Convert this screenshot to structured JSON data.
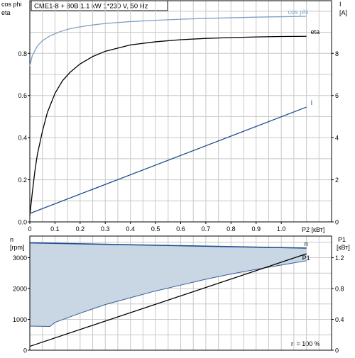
{
  "title_box": "CME1-8 + 80B   1.1 kW   1*230 V, 50 Hz",
  "colors": {
    "grid": "#c8c8c8",
    "axis": "#000000",
    "cosphi": "#7fa0c4",
    "eta": "#000000",
    "current": "#1f4e8c",
    "speed": "#1f4e8c",
    "p1": "#000000",
    "fill": "#c9d6e4",
    "fill_edge": "#2f5e9a"
  },
  "chart_data": [
    {
      "type": "line",
      "panel": "top",
      "xlabel": "P2 [кВт]",
      "xlim": [
        0,
        1.2
      ],
      "xticks": [
        0,
        0.1,
        0.2,
        0.3,
        0.4,
        0.5,
        0.6,
        0.7,
        0.8,
        0.9,
        1.0
      ],
      "xtick_labels": [
        "0",
        "0.1",
        "0.2",
        "0.3",
        "0.4",
        "0.5",
        "0.6",
        "0.7",
        "0.8",
        "0.9",
        "1.0"
      ],
      "y_left": {
        "label_line1": "cos phi",
        "label_line2": "eta",
        "lim": [
          0,
          1.05
        ],
        "ticks": [
          0,
          0.2,
          0.4,
          0.6,
          0.8
        ],
        "tick_labels": [
          "0.0",
          "0.2",
          "0.4",
          "0.6",
          "0.8"
        ]
      },
      "y_right": {
        "label_line1": "I",
        "label_line2": "[A]",
        "lim": [
          0,
          10.5
        ],
        "ticks": [
          0,
          2,
          4,
          6,
          8
        ],
        "tick_labels": [
          "0",
          "2",
          "4",
          "6",
          "8"
        ]
      },
      "grid": true,
      "series": [
        {
          "name": "cos phi",
          "axis": "left",
          "color_key": "cosphi",
          "x": [
            0,
            0.01,
            0.03,
            0.05,
            0.08,
            0.12,
            0.16,
            0.2,
            0.25,
            0.3,
            0.4,
            0.5,
            0.6,
            0.7,
            0.8,
            0.9,
            1.0,
            1.1
          ],
          "y": [
            0.74,
            0.79,
            0.835,
            0.86,
            0.883,
            0.903,
            0.917,
            0.926,
            0.935,
            0.942,
            0.951,
            0.957,
            0.962,
            0.966,
            0.969,
            0.972,
            0.974,
            0.976
          ]
        },
        {
          "name": "eta",
          "axis": "left",
          "color_key": "eta",
          "x": [
            0,
            0.01,
            0.02,
            0.03,
            0.05,
            0.07,
            0.1,
            0.13,
            0.16,
            0.2,
            0.25,
            0.3,
            0.4,
            0.5,
            0.6,
            0.7,
            0.8,
            0.9,
            1.0,
            1.1
          ],
          "y": [
            0.03,
            0.14,
            0.24,
            0.32,
            0.43,
            0.52,
            0.61,
            0.67,
            0.71,
            0.75,
            0.785,
            0.81,
            0.84,
            0.855,
            0.865,
            0.871,
            0.875,
            0.878,
            0.88,
            0.881
          ]
        },
        {
          "name": "I",
          "axis": "right",
          "color_key": "current",
          "x": [
            0,
            1.1
          ],
          "y": [
            0.4,
            5.45
          ]
        }
      ]
    },
    {
      "type": "line",
      "panel": "bottom",
      "xlim": [
        0,
        1.2
      ],
      "y_left": {
        "label_line1": "n",
        "label_line2": "[rpm]",
        "lim": [
          0,
          3700
        ],
        "ticks": [
          0,
          1000,
          2000,
          3000
        ],
        "tick_labels": [
          "0",
          "1000",
          "2000",
          "3000"
        ]
      },
      "y_right": {
        "label_line1": "P1",
        "label_line2": "[кВт]",
        "lim": [
          0,
          1.48
        ],
        "ticks": [
          0,
          0.4,
          0.8,
          1.2
        ],
        "tick_labels": [
          "0",
          "0.4",
          "0.8",
          "1.2"
        ]
      },
      "grid": true,
      "note": "n = 100 %",
      "series": [
        {
          "name": "n",
          "axis": "left",
          "color_key": "speed",
          "x": [
            0,
            1.1
          ],
          "y": [
            3480,
            3310
          ]
        },
        {
          "name": "P1",
          "axis": "right",
          "color_key": "p1",
          "x": [
            0,
            1.1
          ],
          "y": [
            0.05,
            1.25
          ]
        }
      ],
      "area": {
        "axis": "left",
        "upper": {
          "x": [
            0,
            1.1
          ],
          "y": [
            3480,
            3310
          ]
        },
        "lower": {
          "x": [
            0,
            0.08,
            0.1,
            0.2,
            0.3,
            0.4,
            0.5,
            0.6,
            0.7,
            0.8,
            0.9,
            1.0,
            1.1
          ],
          "y": [
            780,
            770,
            900,
            1200,
            1480,
            1700,
            1920,
            2110,
            2300,
            2470,
            2620,
            2760,
            2900
          ]
        }
      }
    }
  ]
}
